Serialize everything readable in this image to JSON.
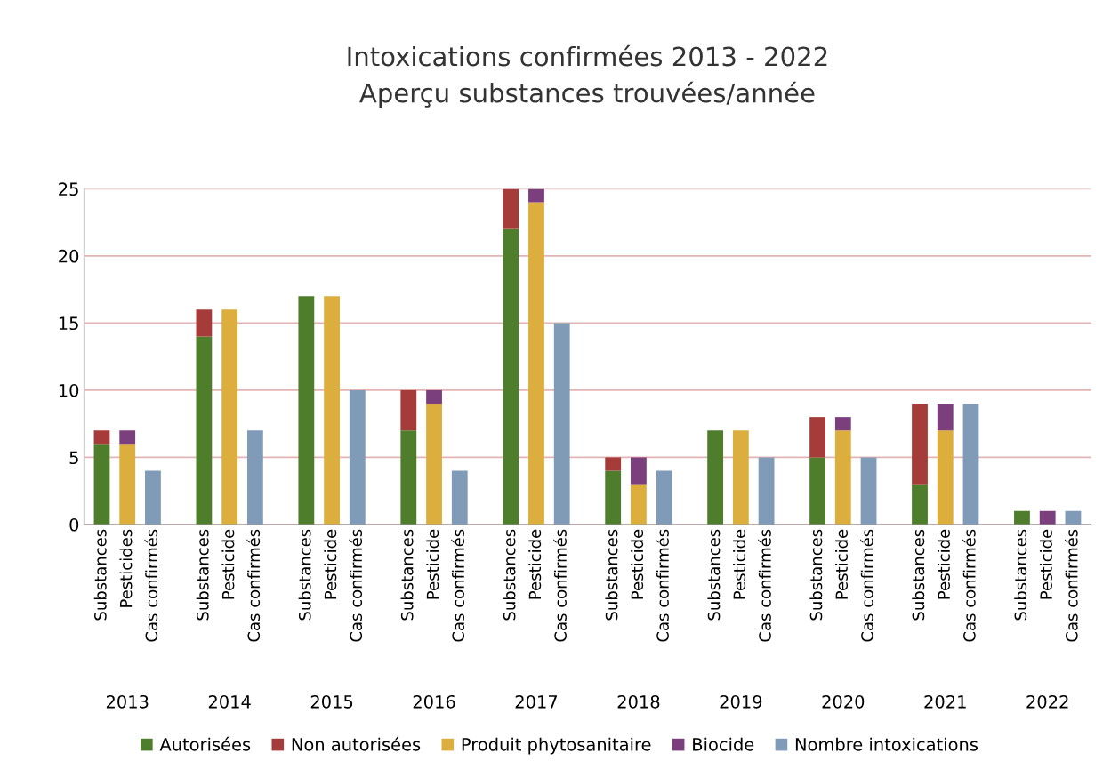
{
  "chart_data": {
    "type": "bar",
    "stacked": true,
    "title": "Intoxications confirmées 2013 - 2022\nAperçu substances trouvées/année",
    "categories": [
      "Substances",
      "Pesticides",
      "Cas confirmés",
      null,
      "Substances",
      "Pesticide",
      "Cas confirmés",
      null,
      "Substances",
      "Pesticide",
      "Cas confirmés",
      null,
      "Substances",
      "Pesticide",
      "Cas confirmés",
      null,
      "Substances",
      "Pesticide",
      "Cas confirmés",
      null,
      "Substances",
      "Pesticide",
      "Cas confirmés",
      null,
      "Substances",
      "Pesticide",
      "Cas confirmés",
      null,
      "Substances",
      "Pesticide",
      "Cas confirmés",
      null,
      "Substances",
      "Pesticide",
      "Cas confirmés",
      null,
      "Substances",
      "Pesticide",
      "Cas confirmés"
    ],
    "series": [
      {
        "name": "Autorisées",
        "color": "#4e7d2c",
        "values": [
          6,
          null,
          null,
          null,
          14,
          null,
          null,
          null,
          17,
          null,
          null,
          null,
          7,
          null,
          null,
          null,
          22,
          null,
          null,
          null,
          4,
          null,
          null,
          null,
          7,
          null,
          null,
          null,
          5,
          null,
          null,
          null,
          3,
          null,
          null,
          null,
          1,
          null,
          null
        ]
      },
      {
        "name": "Non autorisées",
        "color": "#a63c3a",
        "values": [
          1,
          null,
          null,
          null,
          2,
          null,
          null,
          null,
          0,
          null,
          null,
          null,
          3,
          null,
          null,
          null,
          3,
          null,
          null,
          null,
          1,
          null,
          null,
          null,
          0,
          null,
          null,
          null,
          3,
          null,
          null,
          null,
          6,
          null,
          null,
          null,
          0,
          null,
          null
        ]
      },
      {
        "name": "Produit phytosanitaire",
        "color": "#dcae3e",
        "values": [
          null,
          6,
          null,
          null,
          null,
          16,
          null,
          null,
          null,
          17,
          null,
          null,
          null,
          9,
          null,
          null,
          null,
          24,
          null,
          null,
          null,
          3,
          null,
          null,
          null,
          7,
          null,
          null,
          null,
          7,
          null,
          null,
          null,
          7,
          null,
          null,
          null,
          0,
          null
        ]
      },
      {
        "name": "Biocide",
        "color": "#7b3f7e",
        "values": [
          null,
          1,
          null,
          null,
          null,
          0,
          null,
          null,
          null,
          0,
          null,
          null,
          null,
          1,
          null,
          null,
          null,
          1,
          null,
          null,
          null,
          2,
          null,
          null,
          null,
          0,
          null,
          null,
          null,
          1,
          null,
          null,
          null,
          2,
          null,
          null,
          null,
          1,
          null
        ]
      },
      {
        "name": "Nombre intoxications",
        "color": "#7f9bb8",
        "values": [
          null,
          null,
          4,
          null,
          null,
          null,
          7,
          null,
          null,
          null,
          10,
          null,
          null,
          null,
          4,
          null,
          null,
          null,
          15,
          null,
          null,
          null,
          4,
          null,
          null,
          null,
          5,
          null,
          null,
          null,
          5,
          null,
          null,
          null,
          9,
          null,
          null,
          null,
          1
        ]
      }
    ],
    "annotations": [
      "2013",
      "2014",
      "2015",
      "2016",
      "2017",
      "2018",
      "2019",
      "2020",
      "2021",
      "2022"
    ],
    "ylim": [
      0,
      25
    ],
    "yticks": [
      0,
      5,
      10,
      15,
      20,
      25
    ],
    "grid": "y",
    "legend": "bottom"
  }
}
